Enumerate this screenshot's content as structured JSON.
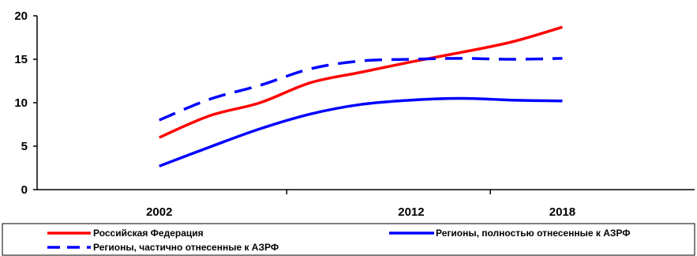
{
  "chart_data": {
    "type": "line",
    "categories": [
      "2002",
      "2012",
      "2018"
    ],
    "x": [
      2002,
      2004,
      2006,
      2008,
      2010,
      2012,
      2014,
      2016,
      2018
    ],
    "ylim": [
      0,
      20
    ],
    "yticks": [
      0,
      5,
      10,
      15,
      20
    ],
    "xticks": [
      2002,
      2012,
      2018
    ],
    "grid": false,
    "legend_position": "bottom",
    "series": [
      {
        "name": "Российская Федерация",
        "color": "#ff0000",
        "style": "solid",
        "values": [
          6.0,
          8.5,
          10.0,
          12.3,
          13.5,
          14.7,
          15.8,
          17.0,
          18.7
        ]
      },
      {
        "name": "Регионы, полностью отнесенные к АЗРФ",
        "color": "#0000ff",
        "style": "solid",
        "values": [
          2.7,
          4.9,
          7.0,
          8.7,
          9.8,
          10.3,
          10.5,
          10.3,
          10.2
        ]
      },
      {
        "name": "Регионы, частично отнесенные к АЗРФ",
        "color": "#0000ff",
        "style": "dashed",
        "values": [
          8.0,
          10.4,
          12.0,
          13.9,
          14.8,
          15.0,
          15.1,
          15.0,
          15.1
        ]
      }
    ]
  }
}
